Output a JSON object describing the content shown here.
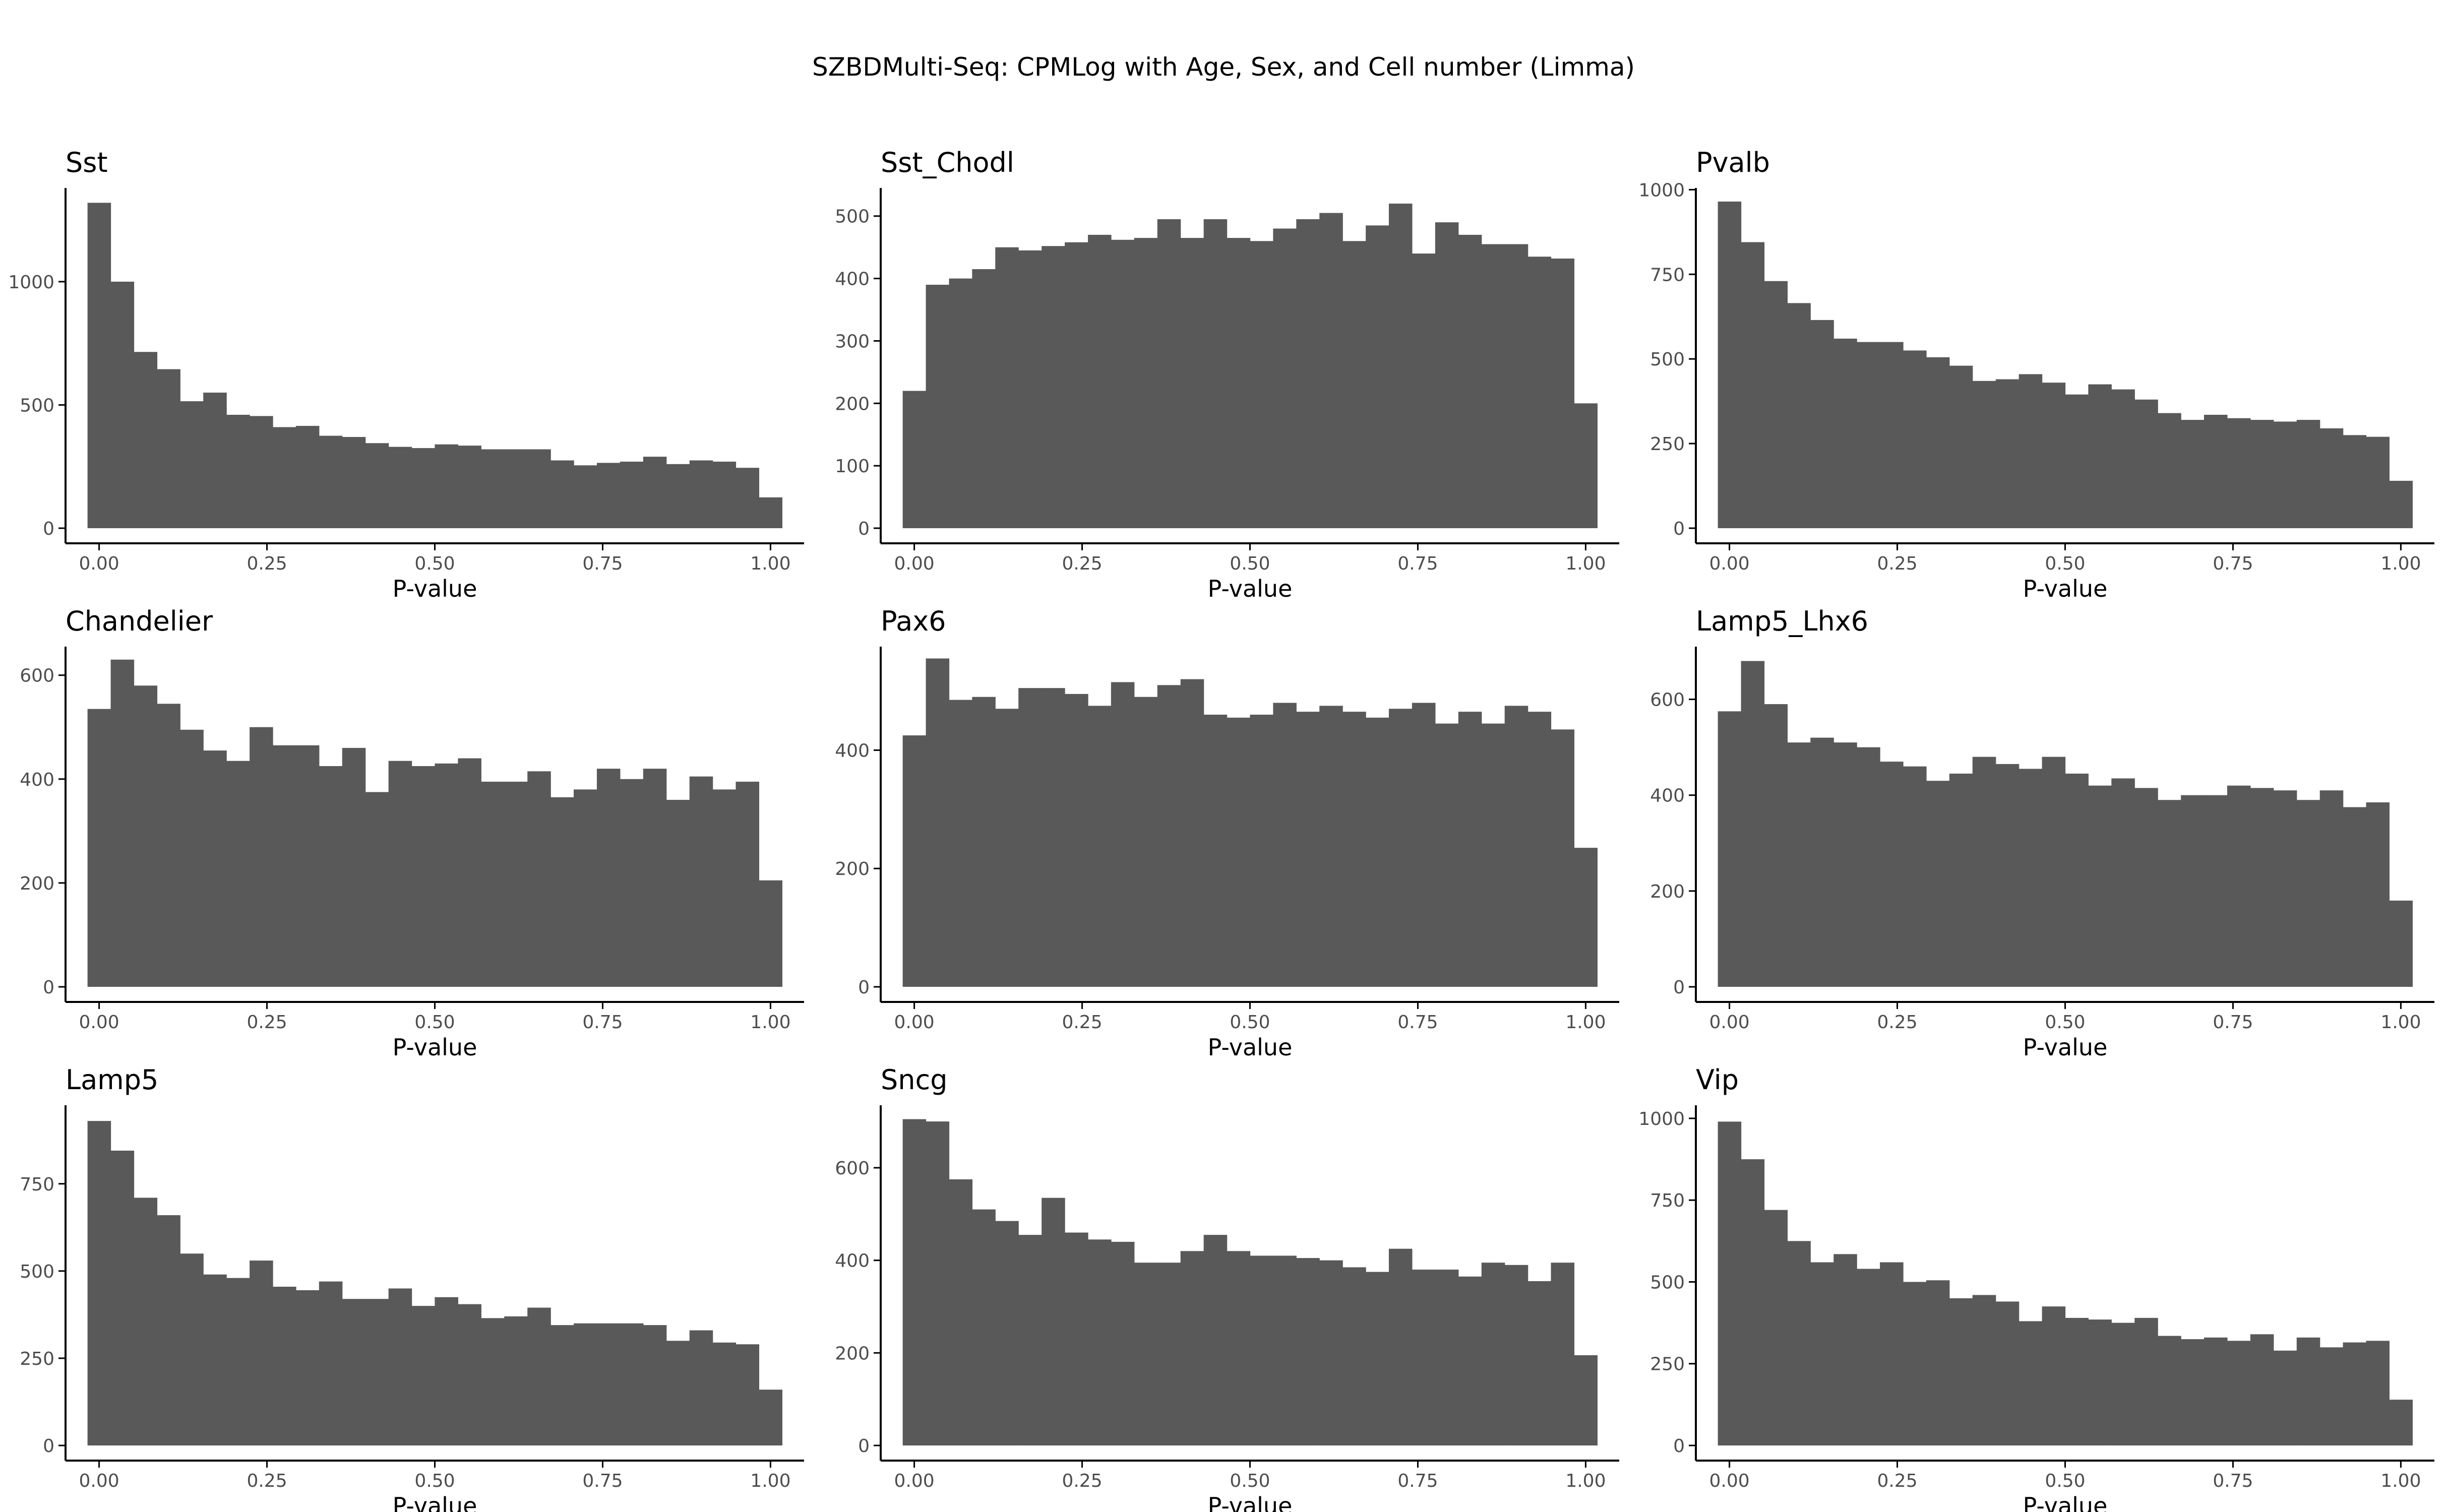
{
  "title": "SZBDMulti-Seq: CPMLog with Age, Sex, and Cell number (Limma)",
  "style": {
    "bar_color": "#595959",
    "axis_color": "#000000",
    "tick_label_color": "#4d4d4d",
    "background": "#ffffff"
  },
  "chart_data": [
    {
      "type": "bar",
      "title": "Sst",
      "xlabel": "P-value",
      "ylabel": "",
      "xlim": [
        -0.05,
        1.05
      ],
      "ylim": [
        0,
        1380
      ],
      "x_ticks": [
        0,
        0.25,
        0.5,
        0.75,
        1
      ],
      "x_tick_labels": [
        "0.00",
        "0.25",
        "0.50",
        "0.75",
        "1.00"
      ],
      "y_ticks": [
        0,
        500,
        1000
      ],
      "y_tick_labels": [
        "0",
        "500",
        "1000"
      ],
      "bin_width": 0.0345,
      "bin_centers": [
        0.0,
        0.0345,
        0.069,
        0.1034,
        0.1379,
        0.1724,
        0.2069,
        0.2414,
        0.2759,
        0.3103,
        0.3448,
        0.3793,
        0.4138,
        0.4483,
        0.4828,
        0.5172,
        0.5517,
        0.5862,
        0.6207,
        0.6552,
        0.6897,
        0.7241,
        0.7586,
        0.7931,
        0.8276,
        0.8621,
        0.8966,
        0.931,
        0.9655,
        1.0
      ],
      "values": [
        1320,
        1000,
        715,
        645,
        515,
        550,
        460,
        455,
        410,
        415,
        375,
        370,
        345,
        330,
        325,
        340,
        335,
        320,
        320,
        320,
        275,
        255,
        265,
        270,
        290,
        260,
        275,
        270,
        245,
        125
      ]
    },
    {
      "type": "bar",
      "title": "Sst_Chodl",
      "xlabel": "P-value",
      "ylabel": "",
      "xlim": [
        -0.05,
        1.05
      ],
      "ylim": [
        0,
        545
      ],
      "x_ticks": [
        0,
        0.25,
        0.5,
        0.75,
        1
      ],
      "x_tick_labels": [
        "0.00",
        "0.25",
        "0.50",
        "0.75",
        "1.00"
      ],
      "y_ticks": [
        0,
        100,
        200,
        300,
        400,
        500
      ],
      "y_tick_labels": [
        "0",
        "100",
        "200",
        "300",
        "400",
        "500"
      ],
      "bin_width": 0.0345,
      "bin_centers": [
        0.0,
        0.0345,
        0.069,
        0.1034,
        0.1379,
        0.1724,
        0.2069,
        0.2414,
        0.2759,
        0.3103,
        0.3448,
        0.3793,
        0.4138,
        0.4483,
        0.4828,
        0.5172,
        0.5517,
        0.5862,
        0.6207,
        0.6552,
        0.6897,
        0.7241,
        0.7586,
        0.7931,
        0.8276,
        0.8621,
        0.8966,
        0.931,
        0.9655,
        1.0
      ],
      "values": [
        220,
        390,
        400,
        415,
        450,
        445,
        452,
        458,
        470,
        462,
        465,
        495,
        465,
        495,
        465,
        460,
        480,
        495,
        505,
        460,
        485,
        520,
        440,
        490,
        470,
        455,
        455,
        435,
        432,
        200
      ]
    },
    {
      "type": "bar",
      "title": "Pvalb",
      "xlabel": "P-value",
      "ylabel": "",
      "xlim": [
        -0.05,
        1.05
      ],
      "ylim": [
        0,
        1005
      ],
      "x_ticks": [
        0,
        0.25,
        0.5,
        0.75,
        1
      ],
      "x_tick_labels": [
        "0.00",
        "0.25",
        "0.50",
        "0.75",
        "1.00"
      ],
      "y_ticks": [
        0,
        250,
        500,
        750,
        1000
      ],
      "y_tick_labels": [
        "0",
        "250",
        "500",
        "750",
        "1000"
      ],
      "bin_width": 0.0345,
      "bin_centers": [
        0.0,
        0.0345,
        0.069,
        0.1034,
        0.1379,
        0.1724,
        0.2069,
        0.2414,
        0.2759,
        0.3103,
        0.3448,
        0.3793,
        0.4138,
        0.4483,
        0.4828,
        0.5172,
        0.5517,
        0.5862,
        0.6207,
        0.6552,
        0.6897,
        0.7241,
        0.7586,
        0.7931,
        0.8276,
        0.8621,
        0.8966,
        0.931,
        0.9655,
        1.0
      ],
      "values": [
        965,
        845,
        730,
        665,
        615,
        560,
        550,
        550,
        525,
        505,
        480,
        435,
        440,
        455,
        430,
        395,
        425,
        410,
        380,
        340,
        320,
        335,
        325,
        320,
        315,
        320,
        295,
        275,
        270,
        140
      ]
    },
    {
      "type": "bar",
      "title": "Chandelier",
      "xlabel": "P-value",
      "ylabel": "",
      "xlim": [
        -0.05,
        1.05
      ],
      "ylim": [
        0,
        655
      ],
      "x_ticks": [
        0,
        0.25,
        0.5,
        0.75,
        1
      ],
      "x_tick_labels": [
        "0.00",
        "0.25",
        "0.50",
        "0.75",
        "1.00"
      ],
      "y_ticks": [
        0,
        200,
        400,
        600
      ],
      "y_tick_labels": [
        "0",
        "200",
        "400",
        "600"
      ],
      "bin_width": 0.0345,
      "bin_centers": [
        0.0,
        0.0345,
        0.069,
        0.1034,
        0.1379,
        0.1724,
        0.2069,
        0.2414,
        0.2759,
        0.3103,
        0.3448,
        0.3793,
        0.4138,
        0.4483,
        0.4828,
        0.5172,
        0.5517,
        0.5862,
        0.6207,
        0.6552,
        0.6897,
        0.7241,
        0.7586,
        0.7931,
        0.8276,
        0.8621,
        0.8966,
        0.931,
        0.9655,
        1.0
      ],
      "values": [
        535,
        630,
        580,
        545,
        495,
        455,
        435,
        500,
        465,
        465,
        425,
        460,
        375,
        435,
        425,
        430,
        440,
        395,
        395,
        415,
        365,
        380,
        420,
        400,
        420,
        360,
        405,
        380,
        395,
        205
      ]
    },
    {
      "type": "bar",
      "title": "Pax6",
      "xlabel": "P-value",
      "ylabel": "",
      "xlim": [
        -0.05,
        1.05
      ],
      "ylim": [
        0,
        575
      ],
      "x_ticks": [
        0,
        0.25,
        0.5,
        0.75,
        1
      ],
      "x_tick_labels": [
        "0.00",
        "0.25",
        "0.50",
        "0.75",
        "1.00"
      ],
      "y_ticks": [
        0,
        200,
        400
      ],
      "y_tick_labels": [
        "0",
        "200",
        "400"
      ],
      "bin_width": 0.0345,
      "bin_centers": [
        0.0,
        0.0345,
        0.069,
        0.1034,
        0.1379,
        0.1724,
        0.2069,
        0.2414,
        0.2759,
        0.3103,
        0.3448,
        0.3793,
        0.4138,
        0.4483,
        0.4828,
        0.5172,
        0.5517,
        0.5862,
        0.6207,
        0.6552,
        0.6897,
        0.7241,
        0.7586,
        0.7931,
        0.8276,
        0.8621,
        0.8966,
        0.931,
        0.9655,
        1.0
      ],
      "values": [
        425,
        555,
        485,
        490,
        470,
        505,
        505,
        495,
        475,
        515,
        490,
        510,
        520,
        460,
        455,
        460,
        480,
        465,
        475,
        465,
        455,
        470,
        480,
        445,
        465,
        445,
        475,
        465,
        435,
        235
      ]
    },
    {
      "type": "bar",
      "title": "Lamp5_Lhx6",
      "xlabel": "P-value",
      "ylabel": "",
      "xlim": [
        -0.05,
        1.05
      ],
      "ylim": [
        0,
        710
      ],
      "x_ticks": [
        0,
        0.25,
        0.5,
        0.75,
        1
      ],
      "x_tick_labels": [
        "0.00",
        "0.25",
        "0.50",
        "0.75",
        "1.00"
      ],
      "y_ticks": [
        0,
        200,
        400,
        600
      ],
      "y_tick_labels": [
        "0",
        "200",
        "400",
        "600"
      ],
      "bin_width": 0.0345,
      "bin_centers": [
        0.0,
        0.0345,
        0.069,
        0.1034,
        0.1379,
        0.1724,
        0.2069,
        0.2414,
        0.2759,
        0.3103,
        0.3448,
        0.3793,
        0.4138,
        0.4483,
        0.4828,
        0.5172,
        0.5517,
        0.5862,
        0.6207,
        0.6552,
        0.6897,
        0.7241,
        0.7586,
        0.7931,
        0.8276,
        0.8621,
        0.8966,
        0.931,
        0.9655,
        1.0
      ],
      "values": [
        575,
        680,
        590,
        510,
        520,
        510,
        500,
        470,
        460,
        430,
        445,
        480,
        465,
        455,
        480,
        445,
        420,
        435,
        415,
        390,
        400,
        400,
        420,
        415,
        410,
        390,
        410,
        375,
        385,
        180
      ]
    },
    {
      "type": "bar",
      "title": "Lamp5",
      "xlabel": "P-value",
      "ylabel": "",
      "xlim": [
        -0.05,
        1.05
      ],
      "ylim": [
        0,
        975
      ],
      "x_ticks": [
        0,
        0.25,
        0.5,
        0.75,
        1
      ],
      "x_tick_labels": [
        "0.00",
        "0.25",
        "0.50",
        "0.75",
        "1.00"
      ],
      "y_ticks": [
        0,
        250,
        500,
        750
      ],
      "y_tick_labels": [
        "0",
        "250",
        "500",
        "750"
      ],
      "bin_width": 0.0345,
      "bin_centers": [
        0.0,
        0.0345,
        0.069,
        0.1034,
        0.1379,
        0.1724,
        0.2069,
        0.2414,
        0.2759,
        0.3103,
        0.3448,
        0.3793,
        0.4138,
        0.4483,
        0.4828,
        0.5172,
        0.5517,
        0.5862,
        0.6207,
        0.6552,
        0.6897,
        0.7241,
        0.7586,
        0.7931,
        0.8276,
        0.8621,
        0.8966,
        0.931,
        0.9655,
        1.0
      ],
      "values": [
        930,
        845,
        710,
        660,
        550,
        490,
        480,
        530,
        455,
        445,
        470,
        420,
        420,
        450,
        400,
        425,
        405,
        365,
        370,
        395,
        345,
        350,
        350,
        350,
        345,
        300,
        330,
        295,
        290,
        160
      ]
    },
    {
      "type": "bar",
      "title": "Sncg",
      "xlabel": "P-value",
      "ylabel": "",
      "xlim": [
        -0.05,
        1.05
      ],
      "ylim": [
        0,
        735
      ],
      "x_ticks": [
        0,
        0.25,
        0.5,
        0.75,
        1
      ],
      "x_tick_labels": [
        "0.00",
        "0.25",
        "0.50",
        "0.75",
        "1.00"
      ],
      "y_ticks": [
        0,
        200,
        400,
        600
      ],
      "y_tick_labels": [
        "0",
        "200",
        "400",
        "600"
      ],
      "bin_width": 0.0345,
      "bin_centers": [
        0.0,
        0.0345,
        0.069,
        0.1034,
        0.1379,
        0.1724,
        0.2069,
        0.2414,
        0.2759,
        0.3103,
        0.3448,
        0.3793,
        0.4138,
        0.4483,
        0.4828,
        0.5172,
        0.5517,
        0.5862,
        0.6207,
        0.6552,
        0.6897,
        0.7241,
        0.7586,
        0.7931,
        0.8276,
        0.8621,
        0.8966,
        0.931,
        0.9655,
        1.0
      ],
      "values": [
        705,
        700,
        575,
        510,
        485,
        455,
        535,
        460,
        445,
        440,
        395,
        395,
        420,
        455,
        420,
        410,
        410,
        405,
        400,
        385,
        375,
        425,
        380,
        380,
        365,
        395,
        390,
        355,
        395,
        195
      ]
    },
    {
      "type": "bar",
      "title": "Vip",
      "xlabel": "P-value",
      "ylabel": "",
      "xlim": [
        -0.05,
        1.05
      ],
      "ylim": [
        0,
        1040
      ],
      "x_ticks": [
        0,
        0.25,
        0.5,
        0.75,
        1
      ],
      "x_tick_labels": [
        "0.00",
        "0.25",
        "0.50",
        "0.75",
        "1.00"
      ],
      "y_ticks": [
        0,
        250,
        500,
        750,
        1000
      ],
      "y_tick_labels": [
        "0",
        "250",
        "500",
        "750",
        "1000"
      ],
      "bin_width": 0.0345,
      "bin_centers": [
        0.0,
        0.0345,
        0.069,
        0.1034,
        0.1379,
        0.1724,
        0.2069,
        0.2414,
        0.2759,
        0.3103,
        0.3448,
        0.3793,
        0.4138,
        0.4483,
        0.4828,
        0.5172,
        0.5517,
        0.5862,
        0.6207,
        0.6552,
        0.6897,
        0.7241,
        0.7586,
        0.7931,
        0.8276,
        0.8621,
        0.8966,
        0.931,
        0.9655,
        1.0
      ],
      "values": [
        990,
        875,
        720,
        625,
        560,
        585,
        540,
        560,
        500,
        505,
        450,
        460,
        440,
        380,
        425,
        390,
        385,
        375,
        390,
        335,
        325,
        330,
        320,
        340,
        290,
        330,
        300,
        315,
        320,
        140
      ]
    }
  ]
}
